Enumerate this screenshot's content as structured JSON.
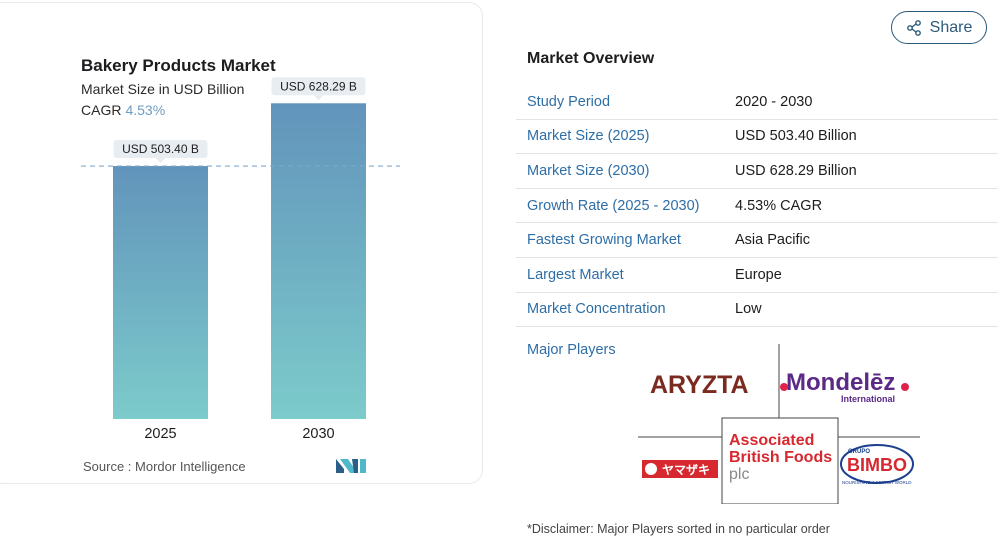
{
  "chart_data": {
    "type": "bar",
    "title": "Bakery Products Market",
    "subtitle": "Market Size in USD Billion",
    "cagr_label": "CAGR",
    "cagr_value": "4.53%",
    "categories": [
      "2025",
      "2030"
    ],
    "values": [
      503.4,
      628.29
    ],
    "data_labels": [
      "USD 503.40 B",
      "USD 628.29 B"
    ],
    "ylim": [
      0,
      800
    ],
    "reference_line": 503.4,
    "bar_color_top": "#6294bb",
    "bar_color_bottom": "#7ccbcb",
    "source": "Source :  Mordor Intelligence"
  },
  "share": {
    "label": "Share",
    "icon": "share-icon"
  },
  "overview": {
    "title": "Market Overview",
    "rows": [
      {
        "label": "Study Period",
        "value": "2020 - 2030"
      },
      {
        "label": "Market Size (2025)",
        "value": "USD 503.40 Billion"
      },
      {
        "label": "Market Size (2030)",
        "value": "USD 628.29 Billion"
      },
      {
        "label": "Growth Rate (2025 - 2030)",
        "value": "4.53% CAGR"
      },
      {
        "label": "Fastest Growing Market",
        "value": "Asia Pacific"
      },
      {
        "label": "Largest Market",
        "value": "Europe"
      },
      {
        "label": "Market Concentration",
        "value": "Low"
      }
    ],
    "label_color": "#2e6ea6"
  },
  "major_players": {
    "label": "Major Players",
    "logos": {
      "aryzta": "ARYZTA",
      "mondelez": "Mondelēz",
      "mondelez_sub": "International",
      "abf_line1": "Associated",
      "abf_line2": "British Foods",
      "abf_line3": "plc",
      "yamazaki": "ヤマザキ",
      "bimbo_top": "GRUPO",
      "bimbo": "BIMBO",
      "bimbo_tag": "NOURISHING A BETTER WORLD"
    }
  },
  "disclaimer": "*Disclaimer: Major Players sorted in no particular order"
}
